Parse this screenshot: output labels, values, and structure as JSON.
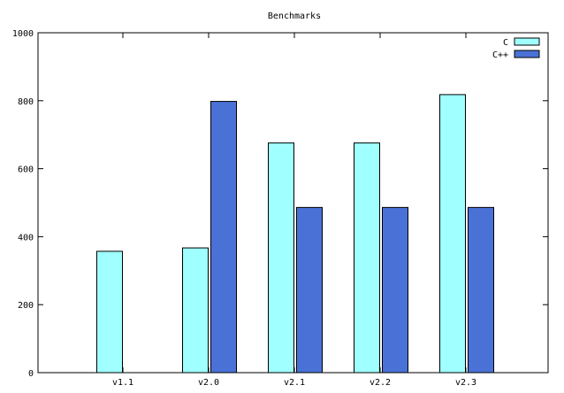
{
  "chart_data": {
    "type": "bar",
    "title": "Benchmarks",
    "xlabel": "",
    "ylabel": "",
    "categories": [
      "v1.1",
      "v2.0",
      "v2.1",
      "v2.2",
      "v2.3"
    ],
    "series": [
      {
        "name": "C",
        "values": [
          357,
          367,
          676,
          676,
          818
        ],
        "color": "#a0ffff"
      },
      {
        "name": "C++",
        "values": [
          null,
          798,
          486,
          486,
          486
        ],
        "color": "#4a72d6"
      }
    ],
    "ylim": [
      0,
      1000
    ],
    "yticks": [
      0,
      200,
      400,
      600,
      800,
      1000
    ],
    "grid": false,
    "legend_position": "top-right"
  }
}
